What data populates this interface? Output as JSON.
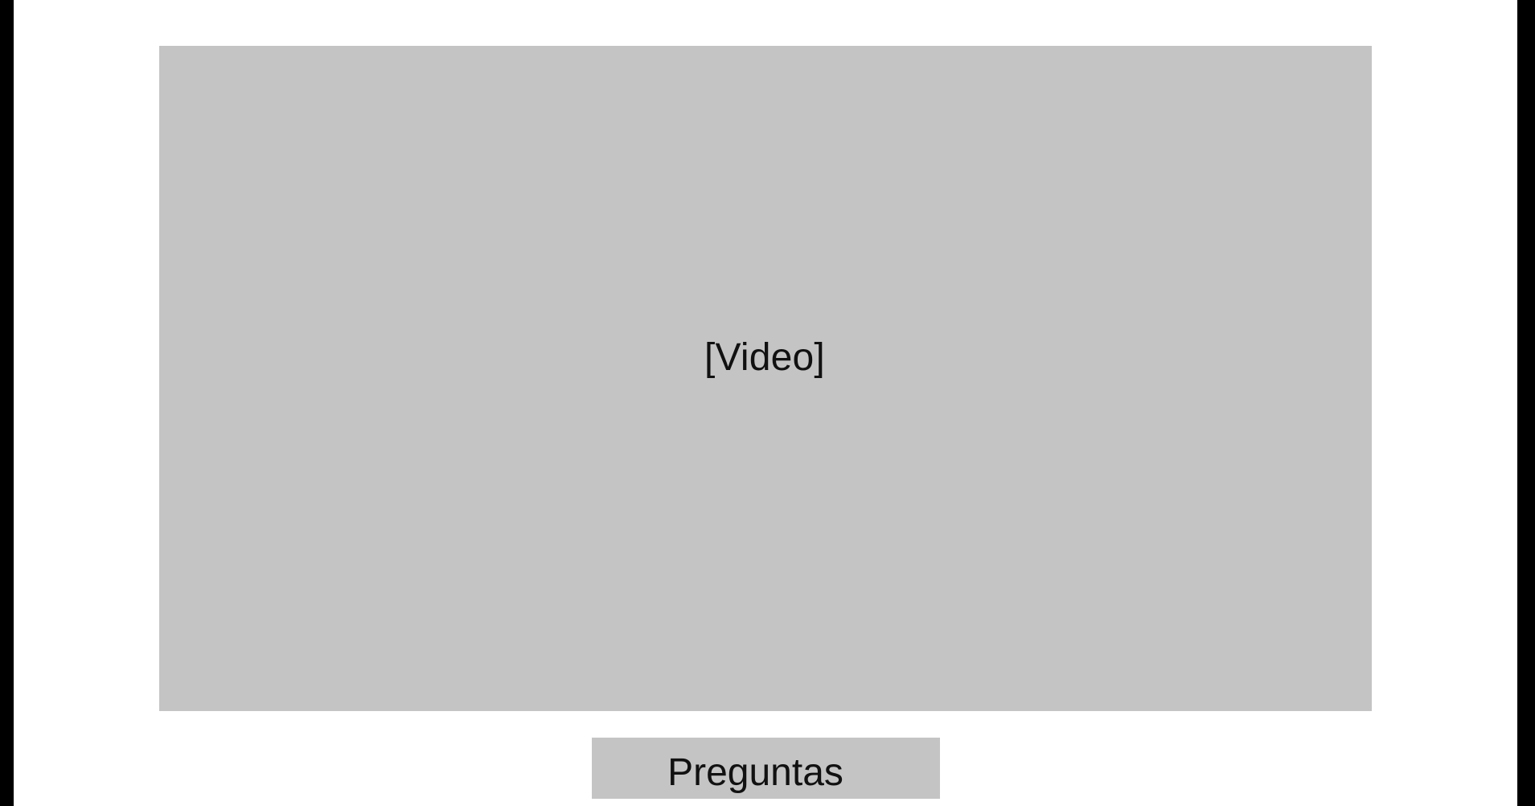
{
  "video": {
    "placeholder_label": "[Video]"
  },
  "actions": {
    "questions_label": "Preguntas"
  },
  "colors": {
    "frame": "#000000",
    "page_background": "#ffffff",
    "placeholder_fill": "#c4c4c4",
    "text": "#111111"
  }
}
